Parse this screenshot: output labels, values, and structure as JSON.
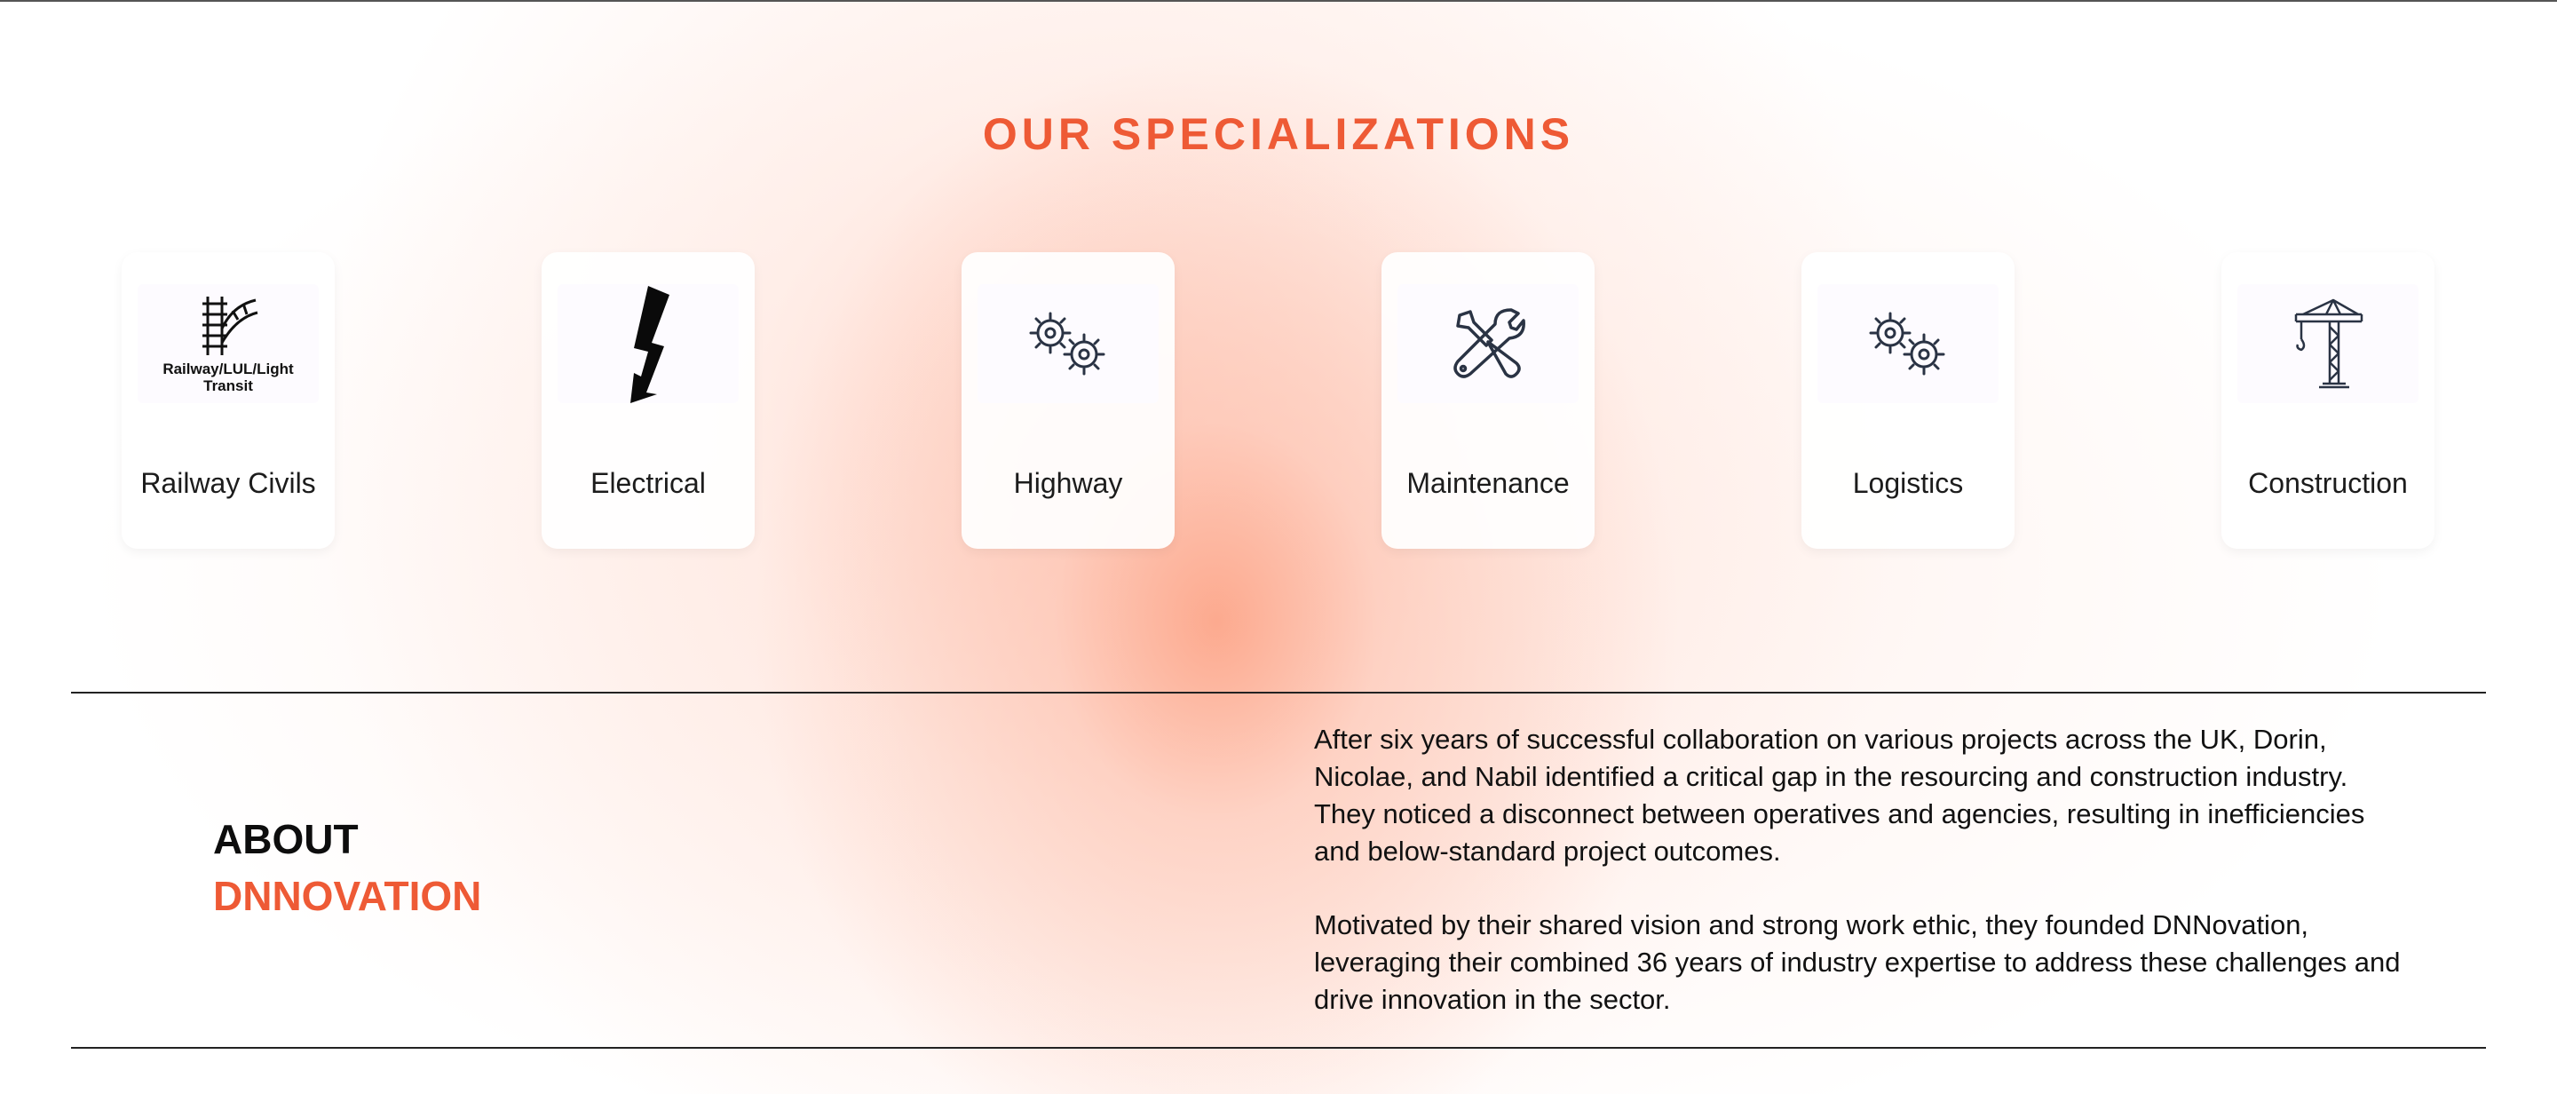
{
  "section_title": "OUR SPECIALIZATIONS",
  "specializations": [
    {
      "name": "Railway Civils",
      "icon": "railway-track-icon",
      "caption": "Railway/LUL/Light Transit"
    },
    {
      "name": "Electrical",
      "icon": "lightning-bolt-icon"
    },
    {
      "name": "Highway",
      "icon": "gears-icon"
    },
    {
      "name": "Maintenance",
      "icon": "wrench-screwdriver-icon"
    },
    {
      "name": "Logistics",
      "icon": "gears-icon"
    },
    {
      "name": "Construction",
      "icon": "crane-icon"
    }
  ],
  "about": {
    "heading_line1": "ABOUT",
    "heading_line2": "DNNOVATION",
    "paragraphs": [
      "After six years of successful collaboration on various projects across the UK, Dorin, Nicolae, and Nabil identified a critical gap in the resourcing and construction industry. They noticed a disconnect between operatives and agencies, resulting in inefficiencies and below-standard project outcomes.",
      "Motivated by their shared vision and strong work ethic, they founded DNNovation, leveraging their combined 36 years of industry expertise to address these challenges and drive innovation in the sector."
    ]
  },
  "colors": {
    "accent": "#ee5a35",
    "text": "#111111"
  }
}
